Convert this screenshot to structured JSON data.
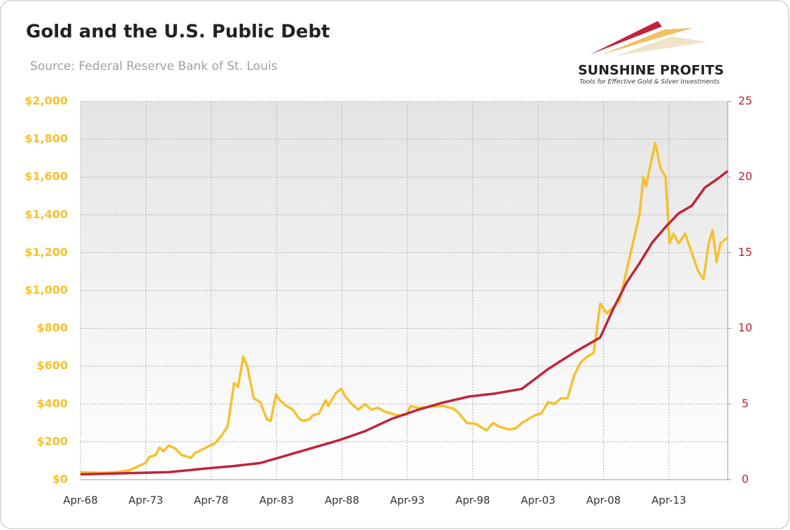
{
  "chart_data": {
    "type": "line",
    "title": "Gold and the U.S. Public Debt",
    "subtitle": "Source: Federal Reserve Bank of St. Louis",
    "logo": {
      "name": "SUNSHINE PROFITS",
      "tagline": "Tools for Effective Gold & Silver Investments"
    },
    "grid": true,
    "xlim": [
      1968.25,
      2017.75
    ],
    "xticks": [
      {
        "value": 1968.25,
        "label": "Apr-68"
      },
      {
        "value": 1973.25,
        "label": "Apr-73"
      },
      {
        "value": 1978.25,
        "label": "Apr-78"
      },
      {
        "value": 1983.25,
        "label": "Apr-83"
      },
      {
        "value": 1988.25,
        "label": "Apr-88"
      },
      {
        "value": 1993.25,
        "label": "Apr-93"
      },
      {
        "value": 1998.25,
        "label": "Apr-98"
      },
      {
        "value": 2003.25,
        "label": "Apr-03"
      },
      {
        "value": 2008.25,
        "label": "Apr-08"
      },
      {
        "value": 2013.25,
        "label": "Apr-13"
      }
    ],
    "ylim": [
      0,
      2000
    ],
    "yticks": [
      {
        "value": 0,
        "label": "$0"
      },
      {
        "value": 200,
        "label": "$200"
      },
      {
        "value": 400,
        "label": "$400"
      },
      {
        "value": 600,
        "label": "$600"
      },
      {
        "value": 800,
        "label": "$800"
      },
      {
        "value": 1000,
        "label": "$1,000"
      },
      {
        "value": 1200,
        "label": "$1,200"
      },
      {
        "value": 1400,
        "label": "$1,400"
      },
      {
        "value": 1600,
        "label": "$1,600"
      },
      {
        "value": 1800,
        "label": "$1,800"
      },
      {
        "value": 2000,
        "label": "$2,000"
      }
    ],
    "y2lim": [
      0,
      25
    ],
    "y2ticks": [
      0,
      5,
      10,
      15,
      20,
      25
    ],
    "series": [
      {
        "color": "#f5c12e",
        "x": [
          1968.25,
          1970,
          1971,
          1972,
          1972.5,
          1973.25,
          1973.5,
          1974,
          1974.3,
          1974.6,
          1975,
          1975.5,
          1976,
          1976.7,
          1977,
          1978,
          1978.5,
          1979,
          1979.5,
          1980,
          1980.3,
          1980.7,
          1981,
          1981.5,
          1982,
          1982.5,
          1982.8,
          1983.2,
          1983.5,
          1984,
          1984.5,
          1985,
          1985.3,
          1985.8,
          1986,
          1986.5,
          1987,
          1987.2,
          1987.8,
          1988.2,
          1988.5,
          1989,
          1989.5,
          1990,
          1990.5,
          1991,
          1991.5,
          1992,
          1992.5,
          1993.2,
          1993.5,
          1994,
          1995,
          1996,
          1996.8,
          1997.2,
          1997.8,
          1998.5,
          1999.3,
          1999.8,
          2000.3,
          2001,
          2001.5,
          2002,
          2002.5,
          2003,
          2003.5,
          2004,
          2004.5,
          2005,
          2005.5,
          2006,
          2006.5,
          2007,
          2007.5,
          2008,
          2008.5,
          2009,
          2009.5,
          2010,
          2010.5,
          2011,
          2011.3,
          2011.5,
          2011.8,
          2012.2,
          2012.6,
          2013,
          2013.3,
          2013.6,
          2014,
          2014.5,
          2015,
          2015.5,
          2015.9,
          2016.3,
          2016.6,
          2016.9,
          2017.2,
          2017.75
        ],
        "values": [
          40,
          36,
          40,
          50,
          65,
          90,
          120,
          130,
          170,
          150,
          180,
          165,
          130,
          115,
          140,
          175,
          190,
          230,
          280,
          510,
          490,
          650,
          600,
          430,
          410,
          320,
          310,
          450,
          420,
          390,
          370,
          320,
          310,
          320,
          340,
          350,
          420,
          390,
          460,
          480,
          440,
          400,
          370,
          400,
          370,
          380,
          360,
          350,
          340,
          345,
          390,
          380,
          385,
          390,
          375,
          350,
          300,
          295,
          260,
          300,
          280,
          265,
          270,
          300,
          320,
          340,
          350,
          410,
          400,
          430,
          430,
          550,
          620,
          650,
          670,
          930,
          880,
          910,
          950,
          1100,
          1250,
          1400,
          1600,
          1550,
          1650,
          1780,
          1650,
          1600,
          1250,
          1300,
          1250,
          1300,
          1200,
          1100,
          1060,
          1250,
          1320,
          1150,
          1250,
          1280
        ]
      },
      {
        "color": "#c0243a",
        "axis": "y2",
        "x": [
          1968.25,
          1975,
          1978,
          1980,
          1982,
          1984,
          1986,
          1988,
          1990,
          1992,
          1994,
          1996,
          1998,
          2000,
          2002,
          2004,
          2006,
          2008,
          2009,
          2010,
          2011,
          2012,
          2013,
          2014,
          2015,
          2016,
          2017,
          2017.75
        ],
        "values": [
          0.35,
          0.5,
          0.75,
          0.9,
          1.1,
          1.6,
          2.1,
          2.6,
          3.2,
          4.0,
          4.6,
          5.1,
          5.5,
          5.7,
          6.0,
          7.3,
          8.4,
          9.4,
          11.3,
          13.0,
          14.3,
          15.7,
          16.7,
          17.6,
          18.1,
          19.3,
          19.9,
          20.4
        ]
      }
    ]
  }
}
